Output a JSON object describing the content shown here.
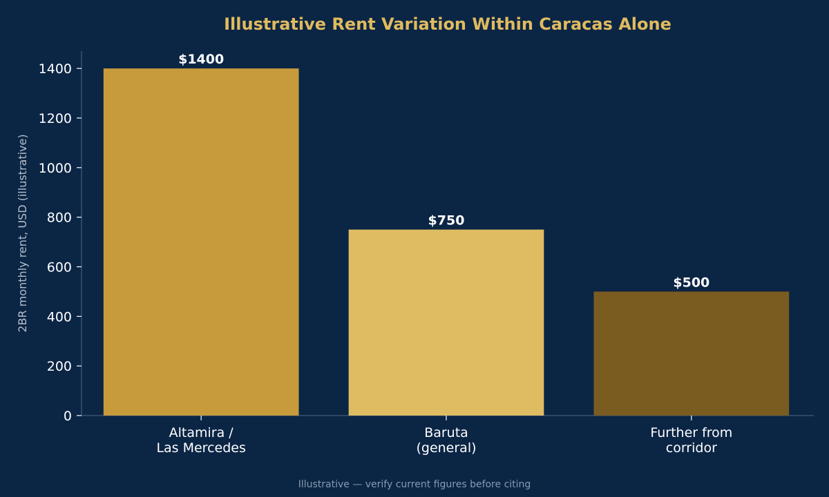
{
  "chart_data": {
    "type": "bar",
    "title": "Illustrative Rent Variation Within Caracas Alone",
    "ylabel": "2BR monthly rent, USD (illustrative)",
    "xlabel": "",
    "categories": [
      [
        "Altamira /",
        "Las Mercedes"
      ],
      [
        "Baruta",
        "(general)"
      ],
      [
        "Further from",
        "corridor"
      ]
    ],
    "values": [
      1400,
      750,
      500
    ],
    "value_labels": [
      "$1400",
      "$750",
      "$500"
    ],
    "bar_colors": [
      "#c79b3b",
      "#dfbc62",
      "#7a5c20"
    ],
    "ylim": [
      0,
      1470
    ],
    "yticks": [
      0,
      200,
      400,
      600,
      800,
      1000,
      1200,
      1400
    ],
    "grid": false,
    "legend": "none"
  },
  "footnote": "Illustrative — verify current figures before citing",
  "colors": {
    "background": "#0b2545",
    "title": "#e0bb5e",
    "axis": "#3a5272",
    "ylabel": "#b5bfcc",
    "footnote": "#8a9ab0",
    "text": "#ffffff"
  }
}
